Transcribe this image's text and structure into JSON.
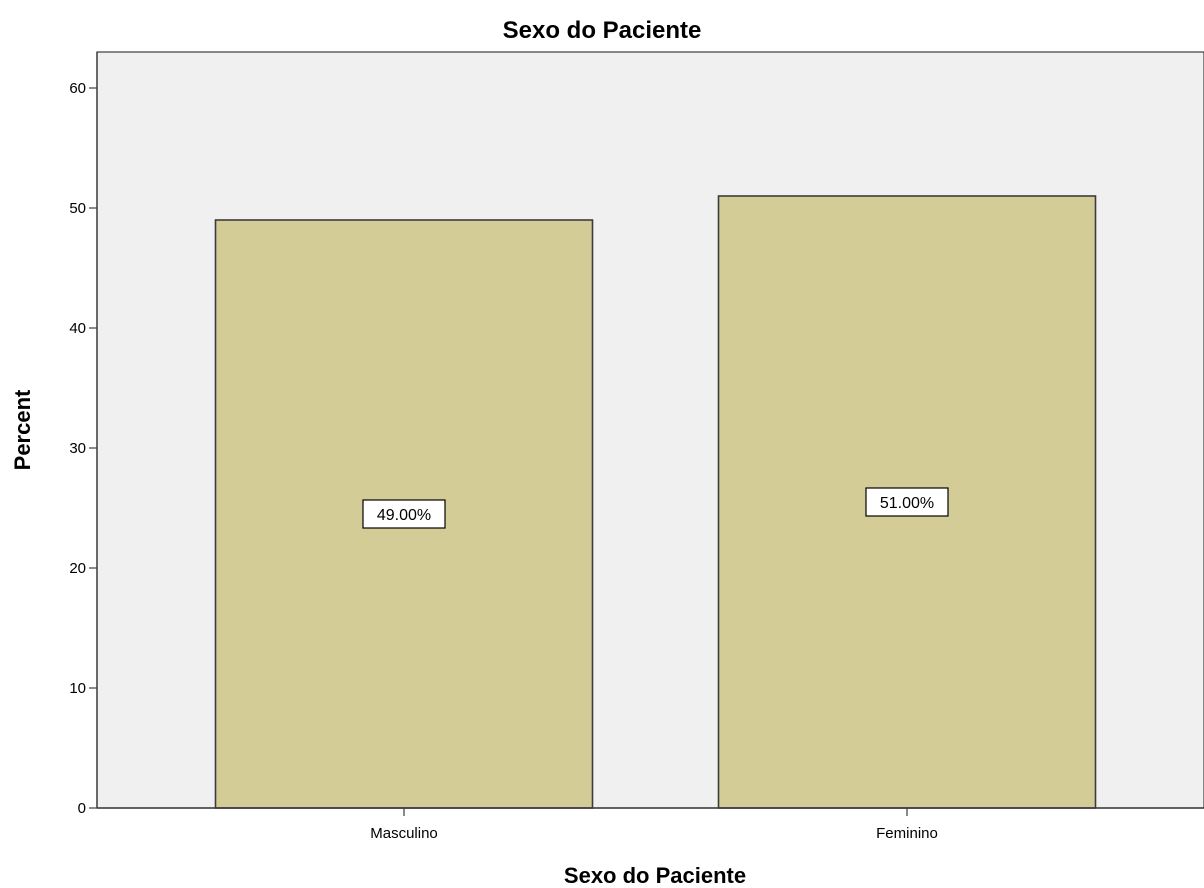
{
  "chart_data": {
    "type": "bar",
    "title": "Sexo do Paciente",
    "xlabel": "Sexo do Paciente",
    "ylabel": "Percent",
    "categories": [
      "Masculino",
      "Feminino"
    ],
    "values": [
      49,
      51
    ],
    "value_labels": [
      "49.00%",
      "51.00%"
    ],
    "ylim": [
      0,
      63
    ],
    "yticks": [
      0,
      10,
      20,
      30,
      40,
      50,
      60
    ],
    "grid": false,
    "colors": {
      "bar_fill": "#d3cc96",
      "bar_stroke": "#3c3c3c",
      "plot_background": "#f0f0f0",
      "axis": "#3c3c3c"
    }
  }
}
